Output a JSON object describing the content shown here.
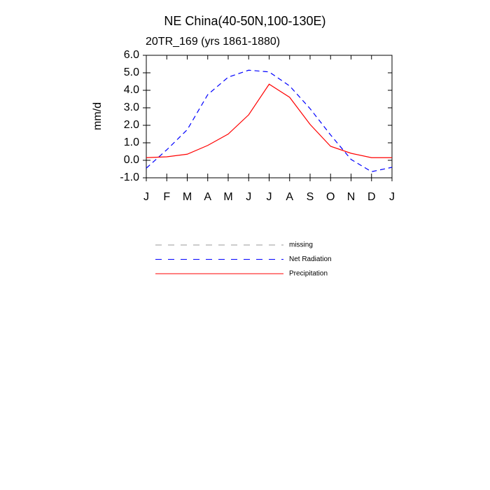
{
  "chart_data": {
    "type": "line",
    "title": "NE China(40-50N,100-130E)",
    "subtitle": "20TR_169 (yrs 1861-1880)",
    "y_label": "mm/d",
    "categories": [
      "J",
      "F",
      "M",
      "A",
      "M",
      "J",
      "J",
      "A",
      "S",
      "O",
      "N",
      "D",
      "J"
    ],
    "ylim": [
      -1,
      6
    ],
    "yticks": [
      {
        "value": -1,
        "label": "-1.0"
      },
      {
        "value": 0,
        "label": "0.0"
      },
      {
        "value": 1,
        "label": "1.0"
      },
      {
        "value": 2,
        "label": "2.0"
      },
      {
        "value": 3,
        "label": "3.0"
      },
      {
        "value": 4,
        "label": "4.0"
      },
      {
        "value": 5,
        "label": "5.0"
      },
      {
        "value": 6,
        "label": "6.0"
      }
    ],
    "series": [
      {
        "name": "missing",
        "color": "#999999",
        "dash": "dashed",
        "values": [
          null,
          null,
          null,
          null,
          null,
          null,
          null,
          null,
          null,
          null,
          null,
          null,
          null
        ]
      },
      {
        "name": "Net Radiation",
        "color": "#0000ff",
        "dash": "dashed",
        "values": [
          -0.45,
          0.6,
          1.75,
          3.75,
          4.75,
          5.15,
          5.05,
          4.25,
          2.95,
          1.45,
          0.05,
          -0.65,
          -0.4
        ]
      },
      {
        "name": "Precipitation",
        "color": "#ff0000",
        "dash": "solid",
        "values": [
          0.15,
          0.2,
          0.35,
          0.85,
          1.5,
          2.6,
          4.35,
          3.6,
          2.05,
          0.8,
          0.4,
          0.15,
          0.15
        ]
      }
    ]
  }
}
